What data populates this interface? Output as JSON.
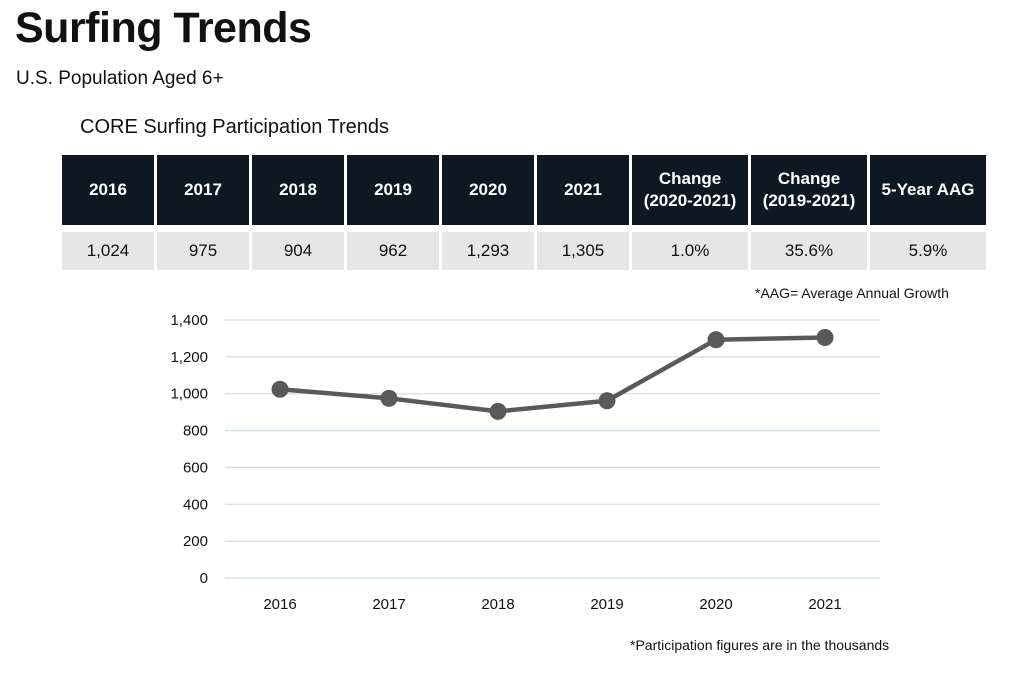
{
  "page": {
    "title": "Surfing Trends",
    "subtitle": "U.S. Population Aged 6+",
    "table_title": "CORE Surfing Participation Trends",
    "aag_note": "*AAG= Average Annual Growth",
    "footnote": "*Participation figures are in the thousands"
  },
  "table": {
    "headers": [
      "2016",
      "2017",
      "2018",
      "2019",
      "2020",
      "2021",
      "Change\n(2020-2021)",
      "Change\n(2019-2021)",
      "5-Year AAG"
    ],
    "values": [
      "1,024",
      "975",
      "904",
      "962",
      "1,293",
      "1,305",
      "1.0%",
      "35.6%",
      "5.9%"
    ]
  },
  "colors": {
    "header_bg": "#0d1823",
    "row_bg": "#e6e6e6",
    "line": "#595959",
    "grid": "#cfe0ea"
  },
  "chart_data": {
    "type": "line",
    "categories": [
      "2016",
      "2017",
      "2018",
      "2019",
      "2020",
      "2021"
    ],
    "series": [
      {
        "values": [
          1024,
          975,
          904,
          962,
          1293,
          1305
        ]
      }
    ],
    "ylim": [
      0,
      1400
    ],
    "yticks": [
      0,
      200,
      400,
      600,
      800,
      1000,
      1200,
      1400
    ],
    "ytick_labels": [
      "0",
      "200",
      "400",
      "600",
      "800",
      "1,000",
      "1,200",
      "1,400"
    ],
    "grid": true,
    "legend": "none",
    "markers": true
  }
}
